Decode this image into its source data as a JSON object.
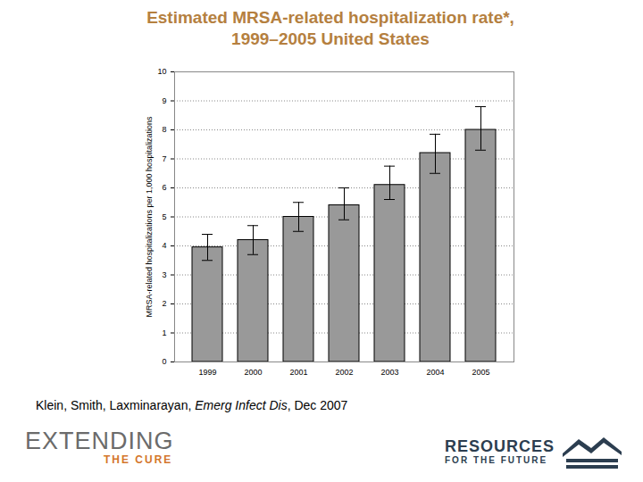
{
  "chart_data": {
    "type": "bar",
    "title": "Estimated MRSA-related hospitalization rate*,\n1999–2005 United States",
    "y_label": "MRSA-related hospitalizations per 1,000 hospitalizations",
    "categories": [
      "1999",
      "2000",
      "2001",
      "2002",
      "2003",
      "2004",
      "2005"
    ],
    "values": [
      3.95,
      4.2,
      5.0,
      5.4,
      6.1,
      7.2,
      8.0
    ],
    "error_low": [
      3.5,
      3.7,
      4.5,
      4.9,
      5.6,
      6.5,
      7.3
    ],
    "error_high": [
      4.4,
      4.7,
      5.5,
      6.0,
      6.75,
      7.85,
      8.8
    ],
    "color": "#999999",
    "ylim": [
      0,
      10
    ],
    "yticks": [
      0,
      1,
      2,
      3,
      4,
      5,
      6,
      7,
      8,
      9,
      10
    ],
    "grid": true
  },
  "source": {
    "authors": "Klein, Smith, Laxminarayan, ",
    "journal": "Emerg Infect Dis",
    "date": ", Dec 2007"
  },
  "logos": {
    "left": [
      "EXTENDING",
      "THE CURE"
    ],
    "right": [
      "RESOURCES",
      "FOR THE FUTURE"
    ]
  }
}
